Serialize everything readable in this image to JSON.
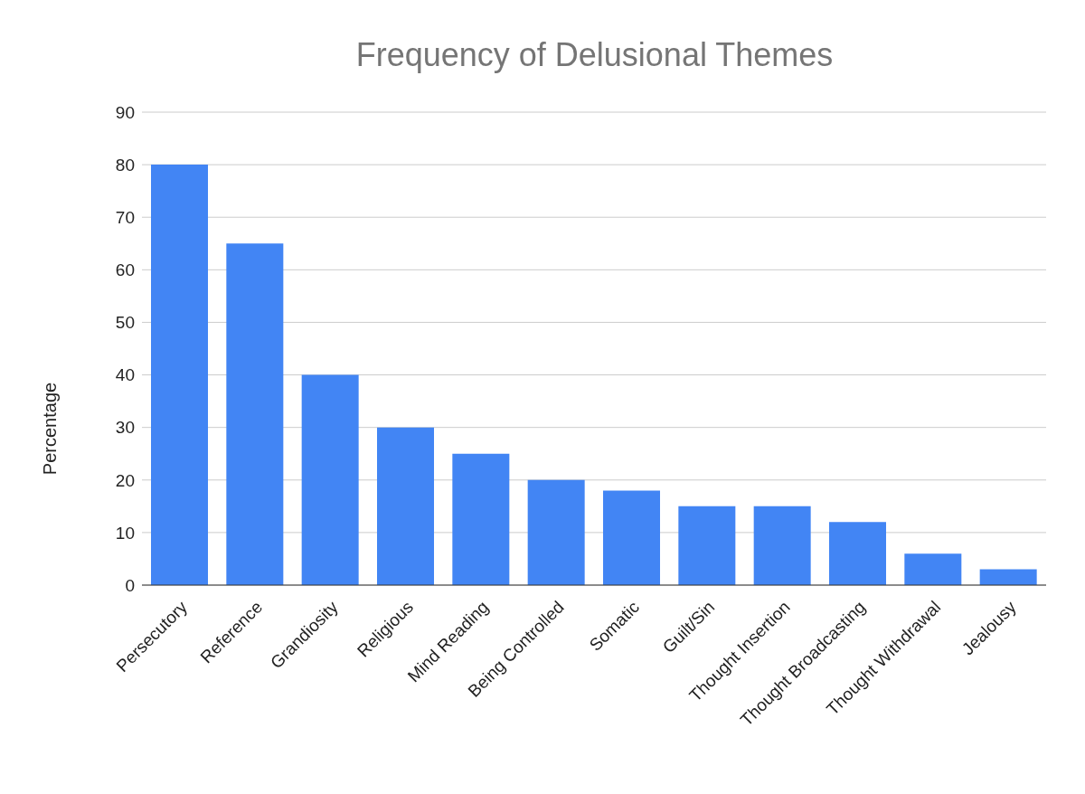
{
  "chart_data": {
    "type": "bar",
    "title": "Frequency of Delusional Themes",
    "ylabel": "Percentage",
    "categories": [
      "Persecutory",
      "Reference",
      "Grandiosity",
      "Religious",
      "Mind Reading",
      "Being Controlled",
      "Somatic",
      "Guilt/Sin",
      "Thought Insertion",
      "Thought Broadcasting",
      "Thought Withdrawal",
      "Jealousy"
    ],
    "values": [
      80,
      65,
      40,
      30,
      25,
      20,
      18,
      15,
      15,
      12,
      6,
      3
    ],
    "color": "#4285f4",
    "ylim": [
      0,
      90
    ],
    "yticks": [
      0,
      10,
      20,
      30,
      40,
      50,
      60,
      70,
      80,
      90
    ],
    "grid": "y"
  }
}
